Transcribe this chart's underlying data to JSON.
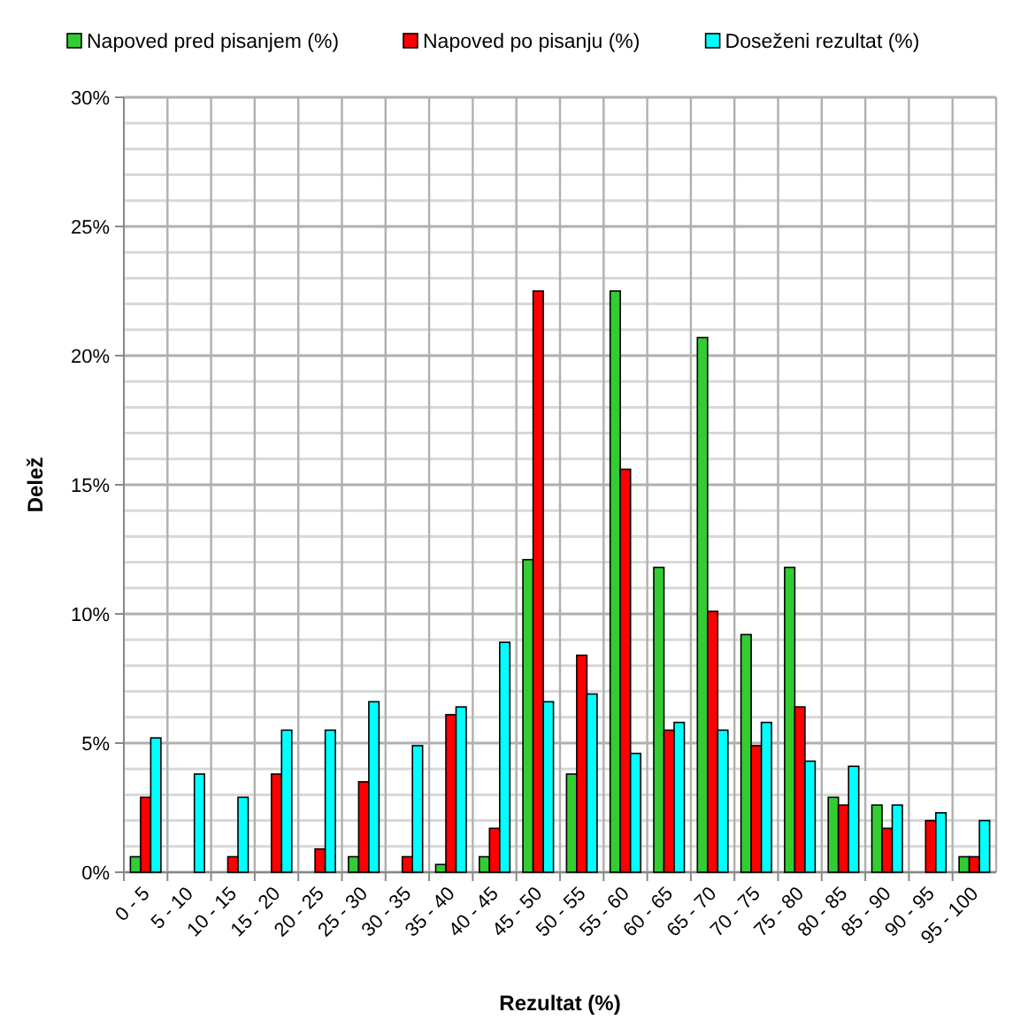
{
  "chart_data": {
    "type": "bar",
    "xlabel": "Rezultat (%)",
    "ylabel": "Delež",
    "categories": [
      "0 - 5",
      "5 - 10",
      "10 - 15",
      "15 - 20",
      "20 - 25",
      "25 - 30",
      "30 - 35",
      "35 - 40",
      "40 - 45",
      "45 - 50",
      "50 - 55",
      "55 - 60",
      "60 - 65",
      "65 - 70",
      "70 - 75",
      "75 - 80",
      "80 - 85",
      "85 - 90",
      "90 - 95",
      "95 - 100"
    ],
    "series": [
      {
        "name": "Napoved pred pisanjem (%)",
        "color": "#33cc33",
        "values": [
          0.6,
          0,
          0,
          0,
          0,
          0.6,
          0,
          0.3,
          0.6,
          12.1,
          3.8,
          22.5,
          11.8,
          20.7,
          9.2,
          11.8,
          2.9,
          2.6,
          0,
          0.6
        ]
      },
      {
        "name": "Napoved po pisanju (%)",
        "color": "#ff0000",
        "values": [
          2.9,
          0,
          0.6,
          3.8,
          0.9,
          3.5,
          0.6,
          6.1,
          1.7,
          22.5,
          8.4,
          15.6,
          5.5,
          10.1,
          4.9,
          6.4,
          2.6,
          1.7,
          2.0,
          0.6
        ]
      },
      {
        "name": "Doseženi rezultat (%)",
        "color": "#00ffff",
        "values": [
          5.2,
          3.8,
          2.9,
          5.5,
          5.5,
          6.6,
          4.9,
          6.4,
          8.9,
          6.6,
          6.9,
          4.6,
          5.8,
          5.5,
          5.8,
          4.3,
          4.1,
          2.6,
          2.3,
          2.0
        ]
      }
    ],
    "ylim": [
      0,
      30
    ],
    "yticks": [
      {
        "value": 0,
        "label": "0%"
      },
      {
        "value": 1,
        "label": null
      },
      {
        "value": 2,
        "label": null
      },
      {
        "value": 3,
        "label": null
      },
      {
        "value": 4,
        "label": null
      },
      {
        "value": 5,
        "label": "5%"
      },
      {
        "value": 6,
        "label": null
      },
      {
        "value": 7,
        "label": null
      },
      {
        "value": 8,
        "label": null
      },
      {
        "value": 9,
        "label": null
      },
      {
        "value": 10,
        "label": "10%"
      },
      {
        "value": 11,
        "label": null
      },
      {
        "value": 12,
        "label": null
      },
      {
        "value": 13,
        "label": null
      },
      {
        "value": 14,
        "label": null
      },
      {
        "value": 15,
        "label": "15%"
      },
      {
        "value": 16,
        "label": null
      },
      {
        "value": 17,
        "label": null
      },
      {
        "value": 18,
        "label": null
      },
      {
        "value": 19,
        "label": null
      },
      {
        "value": 20,
        "label": "20%"
      },
      {
        "value": 21,
        "label": null
      },
      {
        "value": 22,
        "label": null
      },
      {
        "value": 23,
        "label": null
      },
      {
        "value": 24,
        "label": null
      },
      {
        "value": 25,
        "label": "25%"
      },
      {
        "value": 26,
        "label": null
      },
      {
        "value": 27,
        "label": null
      },
      {
        "value": 28,
        "label": null
      },
      {
        "value": 29,
        "label": null
      },
      {
        "value": 30,
        "label": "30%"
      }
    ],
    "grid": true,
    "legend": "top"
  }
}
